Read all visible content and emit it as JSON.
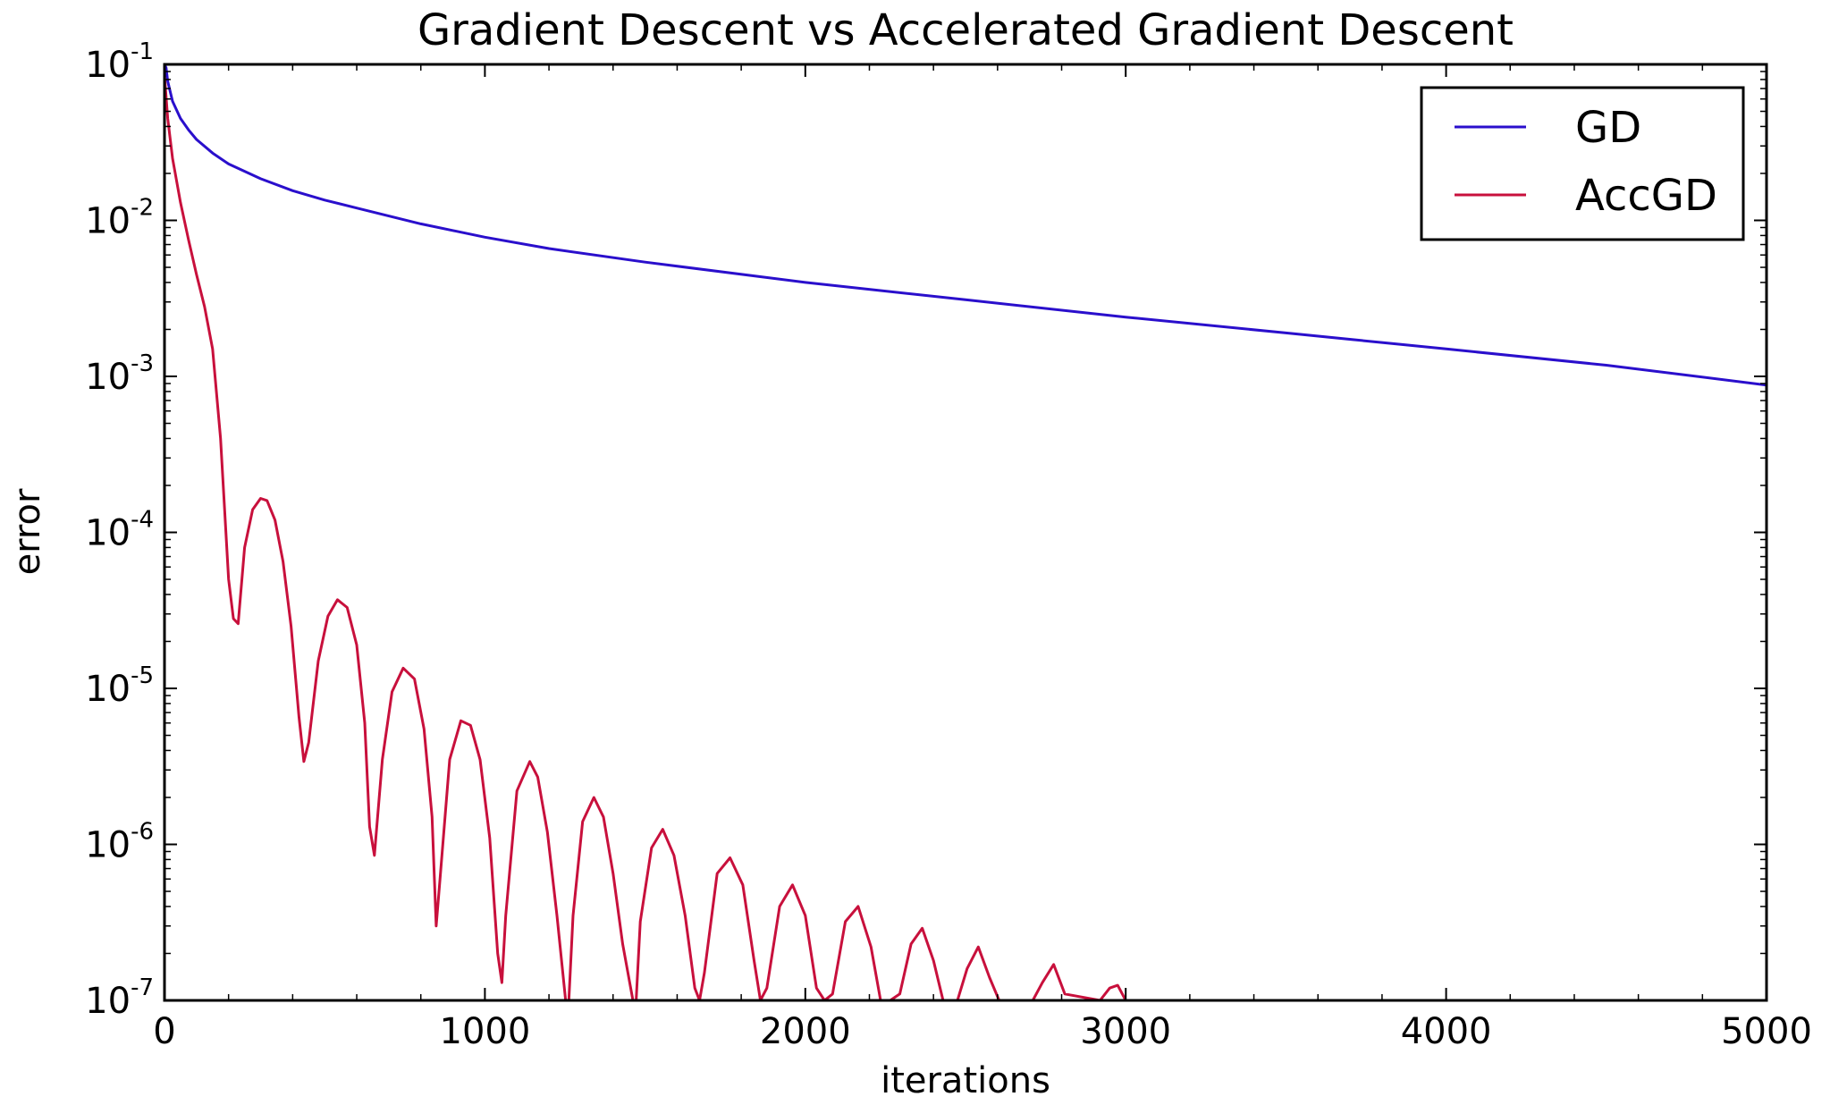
{
  "chart_data": {
    "type": "line",
    "title": "Gradient Descent vs Accelerated Gradient Descent",
    "xlabel": "iterations",
    "ylabel": "error",
    "xlim": [
      0,
      5000
    ],
    "ylim": [
      1e-07,
      0.1
    ],
    "yscale": "log",
    "grid": false,
    "legend_position": "top-right",
    "x_ticks": [
      {
        "value": 0,
        "label": "0"
      },
      {
        "value": 1000,
        "label": "1000"
      },
      {
        "value": 2000,
        "label": "2000"
      },
      {
        "value": 3000,
        "label": "3000"
      },
      {
        "value": 4000,
        "label": "4000"
      },
      {
        "value": 5000,
        "label": "5000"
      }
    ],
    "y_ticks": [
      {
        "value": 0.1,
        "base": "10",
        "exp": "-1"
      },
      {
        "value": 0.01,
        "base": "10",
        "exp": "-2"
      },
      {
        "value": 0.001,
        "base": "10",
        "exp": "-3"
      },
      {
        "value": 0.0001,
        "base": "10",
        "exp": "-4"
      },
      {
        "value": 1e-05,
        "base": "10",
        "exp": "-5"
      },
      {
        "value": 1e-06,
        "base": "10",
        "exp": "-6"
      },
      {
        "value": 1e-07,
        "base": "10",
        "exp": "-7"
      }
    ],
    "series": [
      {
        "name": "GD",
        "color": "#2a0fcc",
        "x": [
          0,
          5,
          10,
          25,
          50,
          75,
          100,
          150,
          200,
          300,
          400,
          500,
          600,
          800,
          1000,
          1200,
          1500,
          2000,
          2500,
          3000,
          3500,
          4000,
          4500,
          5000
        ],
        "y": [
          0.1,
          0.095,
          0.078,
          0.058,
          0.045,
          0.038,
          0.033,
          0.027,
          0.023,
          0.0185,
          0.0155,
          0.0135,
          0.012,
          0.0095,
          0.0078,
          0.0066,
          0.0054,
          0.004,
          0.0031,
          0.0024,
          0.0019,
          0.0015,
          0.00118,
          0.00088
        ]
      },
      {
        "name": "AccGD",
        "color": "#c8103c",
        "x": [
          0,
          10,
          25,
          50,
          75,
          100,
          125,
          150,
          175,
          200,
          215,
          230,
          250,
          275,
          300,
          320,
          345,
          370,
          395,
          420,
          435,
          450,
          480,
          510,
          540,
          570,
          600,
          625,
          640,
          655,
          680,
          710,
          745,
          780,
          810,
          835,
          848,
          860,
          890,
          925,
          955,
          985,
          1015,
          1040,
          1053,
          1065,
          1100,
          1140,
          1165,
          1195,
          1225,
          1252,
          1262,
          1275,
          1305,
          1340,
          1370,
          1400,
          1430,
          1462,
          1472,
          1485,
          1520,
          1555,
          1590,
          1625,
          1655,
          1670,
          1685,
          1725,
          1765,
          1805,
          1840,
          1860,
          1880,
          1920,
          1960,
          2000,
          2035,
          2060,
          2085,
          2125,
          2165,
          2205,
          2235,
          2265,
          2295,
          2330,
          2365,
          2400,
          2430,
          2475,
          2505,
          2540,
          2575,
          2605,
          2640,
          2710,
          2740,
          2775,
          2810,
          2920,
          2950,
          2975,
          3000
        ],
        "y": [
          0.085,
          0.045,
          0.025,
          0.013,
          0.0075,
          0.0045,
          0.0028,
          0.0015,
          0.0004,
          5e-05,
          2.8e-05,
          2.6e-05,
          8e-05,
          0.00014,
          0.000165,
          0.00016,
          0.00012,
          6.5e-05,
          2.5e-05,
          6.5e-06,
          3.4e-06,
          4.5e-06,
          1.5e-05,
          2.9e-05,
          3.7e-05,
          3.3e-05,
          1.9e-05,
          6e-06,
          1.3e-06,
          8.5e-07,
          3.5e-06,
          9.5e-06,
          1.35e-05,
          1.15e-05,
          5.5e-06,
          1.5e-06,
          3e-07,
          6e-07,
          3.5e-06,
          6.2e-06,
          5.8e-06,
          3.5e-06,
          1.1e-06,
          2e-07,
          1.3e-07,
          3.5e-07,
          2.2e-06,
          3.4e-06,
          2.7e-06,
          1.2e-06,
          3.5e-07,
          1e-07,
          1e-07,
          3.5e-07,
          1.4e-06,
          2e-06,
          1.5e-06,
          6.5e-07,
          2.3e-07,
          1e-07,
          1e-07,
          3.2e-07,
          9.5e-07,
          1.25e-06,
          8.5e-07,
          3.5e-07,
          1.2e-07,
          1e-07,
          1.5e-07,
          6.5e-07,
          8.2e-07,
          5.5e-07,
          1.8e-07,
          1e-07,
          1.2e-07,
          4e-07,
          5.5e-07,
          3.5e-07,
          1.2e-07,
          1e-07,
          1.1e-07,
          3.2e-07,
          4e-07,
          2.2e-07,
          1e-07,
          1e-07,
          1.1e-07,
          2.3e-07,
          2.9e-07,
          1.8e-07,
          1e-07,
          1e-07,
          1.6e-07,
          2.2e-07,
          1.4e-07,
          1e-07,
          1e-07,
          1e-07,
          1.3e-07,
          1.7e-07,
          1.1e-07,
          1e-07,
          1.2e-07,
          1.25e-07,
          1e-07
        ]
      }
    ]
  }
}
